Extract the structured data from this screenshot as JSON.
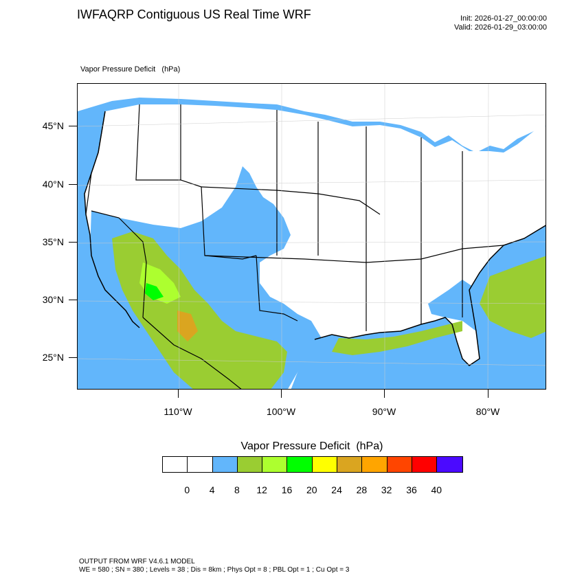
{
  "header": {
    "title": "IWFAQRP Contiguous US Real Time WRF",
    "init": "Init: 2026-01-27_00:00:00",
    "valid": "Valid: 2026-01-29_03:00:00"
  },
  "map": {
    "variable": "Vapor Pressure Deficit",
    "units": "(hPa)",
    "lat_labels": [
      "45°N",
      "40°N",
      "35°N",
      "30°N",
      "25°N"
    ],
    "lon_labels": [
      "110°W",
      "100°W",
      "90°W",
      "80°W"
    ],
    "colors": {
      "land": "#ffffff",
      "ocean": "#62b6fb",
      "class_8_12": "#9acd32",
      "class_12_16": "#adff2f",
      "class_16_20": "#00ff00",
      "class_20_24": "#ffff00",
      "class_24_28": "#daa520",
      "boundary": "#000000"
    }
  },
  "colorbar": {
    "title": "Vapor Pressure Deficit",
    "units": "(hPa)",
    "colors": [
      "#ffffff",
      "#ffffff",
      "#62b6fb",
      "#9acd32",
      "#adff2f",
      "#00ff00",
      "#ffff00",
      "#daa520",
      "#ffa500",
      "#ff4500",
      "#ff0000",
      "#4b0aff"
    ],
    "labels": [
      "0",
      "4",
      "8",
      "12",
      "16",
      "20",
      "24",
      "28",
      "32",
      "36",
      "40"
    ]
  },
  "footer": {
    "line1": "OUTPUT FROM WRF V4.6.1 MODEL",
    "line2": "WE = 580 ; SN = 380 ; Levels = 38 ; Dis = 8km ; Phys Opt = 8 ; PBL Opt = 1 ; Cu Opt = 3"
  }
}
